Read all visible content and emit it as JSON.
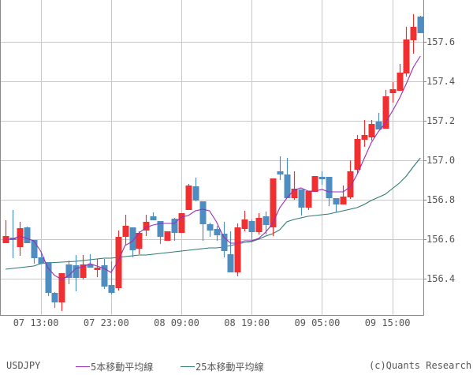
{
  "legend": {
    "symbol": "USDJPY",
    "ma5_label": "5本移動平均線",
    "ma25_label": "25本移動平均線",
    "credit": "(c)Quants Research"
  },
  "colors": {
    "up": "#f03030",
    "down": "#4f8cc0",
    "ma5": "#9a2db8",
    "ma25": "#2e7a72",
    "grid": "#c8c8c8",
    "frame": "#888888"
  },
  "chart_data": {
    "type": "candlestick",
    "title": "USDJPY",
    "symbol": "USDJPY",
    "interval": "1 hour",
    "xlabel": "",
    "ylabel": "",
    "ylim": [
      156.22,
      157.81
    ],
    "grid": true,
    "legend_position": "bottom",
    "y_ticks": [
      156.4,
      156.6,
      156.8,
      157.0,
      157.2,
      157.4,
      157.6
    ],
    "y_tick_labels": [
      "156.4",
      "156.6",
      "156.8",
      "157.0",
      "157.2",
      "157.4",
      "157.6"
    ],
    "x_ticks": [
      {
        "index": 5,
        "label": "07 13:00"
      },
      {
        "index": 15,
        "label": "07 23:00"
      },
      {
        "index": 25,
        "label": "08 09:00"
      },
      {
        "index": 35,
        "label": "08 19:00"
      },
      {
        "index": 45,
        "label": "09 05:00"
      },
      {
        "index": 55,
        "label": "09 15:00"
      }
    ],
    "series_names": [
      "USDJPY",
      "5本移動平均線",
      "25本移動平均線"
    ],
    "candles": [
      {
        "o": 156.58,
        "h": 156.696,
        "l": 156.6,
        "c": 156.616,
        "hi": 156.696,
        "lo": 156.6
      },
      {
        "o": 156.608,
        "h": 156.748,
        "l": 156.504,
        "c": 156.596
      },
      {
        "o": 156.56,
        "h": 156.688,
        "l": 156.516,
        "c": 156.656
      },
      {
        "o": 156.66,
        "h": 156.664,
        "l": 156.584,
        "c": 156.58
      },
      {
        "o": 156.596,
        "h": 156.596,
        "l": 156.476,
        "c": 156.504
      },
      {
        "o": 156.508,
        "h": 156.528,
        "l": 156.476,
        "c": 156.476
      },
      {
        "o": 156.484,
        "h": 156.484,
        "l": 156.312,
        "c": 156.328
      },
      {
        "o": 156.328,
        "h": 156.332,
        "l": 156.252,
        "c": 156.28
      },
      {
        "o": 156.28,
        "h": 156.424,
        "l": 156.236,
        "c": 156.428
      },
      {
        "o": 156.472,
        "h": 156.492,
        "l": 156.372,
        "c": 156.404
      },
      {
        "o": 156.468,
        "h": 156.52,
        "l": 156.336,
        "c": 156.404
      },
      {
        "o": 156.404,
        "h": 156.52,
        "l": 156.396,
        "c": 156.472
      },
      {
        "o": 156.472,
        "h": 156.524,
        "l": 156.456,
        "c": 156.456
      },
      {
        "o": 156.444,
        "h": 156.5,
        "l": 156.408,
        "c": 156.456
      },
      {
        "o": 156.468,
        "h": 156.5,
        "l": 156.348,
        "c": 156.36
      },
      {
        "o": 156.368,
        "h": 156.488,
        "l": 156.32,
        "c": 156.328
      },
      {
        "o": 156.352,
        "h": 156.644,
        "l": 156.34,
        "c": 156.612
      },
      {
        "o": 156.612,
        "h": 156.724,
        "l": 156.572,
        "c": 156.668
      },
      {
        "o": 156.66,
        "h": 156.66,
        "l": 156.508,
        "c": 156.544
      },
      {
        "o": 156.552,
        "h": 156.64,
        "l": 156.524,
        "c": 156.632
      },
      {
        "o": 156.644,
        "h": 156.724,
        "l": 156.616,
        "c": 156.688
      },
      {
        "o": 156.716,
        "h": 156.736,
        "l": 156.696,
        "c": 156.696
      },
      {
        "o": 156.692,
        "h": 156.692,
        "l": 156.576,
        "c": 156.612
      },
      {
        "o": 156.592,
        "h": 156.636,
        "l": 156.592,
        "c": 156.64
      },
      {
        "o": 156.704,
        "h": 156.708,
        "l": 156.592,
        "c": 156.632
      },
      {
        "o": 156.632,
        "h": 156.732,
        "l": 156.632,
        "c": 156.732
      },
      {
        "o": 156.748,
        "h": 156.88,
        "l": 156.8,
        "c": 156.872
      },
      {
        "o": 156.868,
        "h": 156.912,
        "l": 156.792,
        "c": 156.796
      },
      {
        "o": 156.792,
        "h": 156.792,
        "l": 156.592,
        "c": 156.676
      },
      {
        "o": 156.676,
        "h": 156.684,
        "l": 156.612,
        "c": 156.644
      },
      {
        "o": 156.652,
        "h": 156.668,
        "l": 156.592,
        "c": 156.62
      },
      {
        "o": 156.628,
        "h": 156.688,
        "l": 156.508,
        "c": 156.54
      },
      {
        "o": 156.524,
        "h": 156.64,
        "l": 156.432,
        "c": 156.432
      },
      {
        "o": 156.432,
        "h": 156.68,
        "l": 156.412,
        "c": 156.66
      },
      {
        "o": 156.652,
        "h": 156.744,
        "l": 156.64,
        "c": 156.7
      },
      {
        "o": 156.692,
        "h": 156.7,
        "l": 156.584,
        "c": 156.636
      },
      {
        "o": 156.636,
        "h": 156.732,
        "l": 156.624,
        "c": 156.708
      },
      {
        "o": 156.716,
        "h": 156.74,
        "l": 156.624,
        "c": 156.672
      },
      {
        "o": 156.66,
        "h": 156.908,
        "l": 156.616,
        "c": 156.908
      },
      {
        "o": 156.944,
        "h": 157.02,
        "l": 156.9,
        "c": 156.928
      },
      {
        "o": 156.928,
        "h": 157.012,
        "l": 156.808,
        "c": 156.808
      },
      {
        "o": 156.808,
        "h": 156.944,
        "l": 156.8,
        "c": 156.856
      },
      {
        "o": 156.852,
        "h": 156.852,
        "l": 156.72,
        "c": 156.76
      },
      {
        "o": 156.76,
        "h": 156.844,
        "l": 156.748,
        "c": 156.844
      },
      {
        "o": 156.84,
        "h": 156.908,
        "l": 156.84,
        "c": 156.92
      },
      {
        "o": 156.916,
        "h": 156.944,
        "l": 156.876,
        "c": 156.904
      },
      {
        "o": 156.916,
        "h": 156.916,
        "l": 156.768,
        "c": 156.808
      },
      {
        "o": 156.808,
        "h": 156.808,
        "l": 156.736,
        "c": 156.776
      },
      {
        "o": 156.776,
        "h": 156.872,
        "l": 156.776,
        "c": 156.816
      },
      {
        "o": 156.812,
        "h": 157.0,
        "l": 156.804,
        "c": 156.944
      },
      {
        "o": 156.952,
        "h": 157.128,
        "l": 156.932,
        "c": 157.108
      },
      {
        "o": 157.104,
        "h": 157.204,
        "l": 157.068,
        "c": 157.128
      },
      {
        "o": 157.116,
        "h": 157.204,
        "l": 157.1,
        "c": 157.184
      },
      {
        "o": 157.196,
        "h": 157.24,
        "l": 157.188,
        "c": 157.156
      },
      {
        "o": 157.16,
        "h": 157.356,
        "l": 157.16,
        "c": 157.324
      },
      {
        "o": 157.34,
        "h": 157.396,
        "l": 157.292,
        "c": 157.36
      },
      {
        "o": 157.352,
        "h": 157.488,
        "l": 157.352,
        "c": 157.444
      },
      {
        "o": 157.44,
        "h": 157.676,
        "l": 157.424,
        "c": 157.612
      },
      {
        "o": 157.608,
        "h": 157.74,
        "l": 157.54,
        "c": 157.676
      },
      {
        "o": 157.728,
        "h": 157.732,
        "l": 157.644,
        "c": 157.644
      }
    ],
    "ma5": [
      156.6,
      156.6,
      156.616,
      156.604,
      156.592,
      156.54,
      156.456,
      156.416,
      156.396,
      156.416,
      156.452,
      156.46,
      156.476,
      156.464,
      156.452,
      156.432,
      156.488,
      156.568,
      156.588,
      156.632,
      156.66,
      156.672,
      156.68,
      156.68,
      156.68,
      156.712,
      156.72,
      156.744,
      156.752,
      156.744,
      156.688,
      156.612,
      156.58,
      156.58,
      156.592,
      156.592,
      156.604,
      156.636,
      156.68,
      156.76,
      156.808,
      156.848,
      156.86,
      156.844,
      156.844,
      156.852,
      156.84,
      156.84,
      156.84,
      156.864,
      156.928,
      157.008,
      157.088,
      157.144,
      157.188,
      157.248,
      157.312,
      157.388,
      157.472,
      157.528
    ],
    "ma25": [
      156.448,
      156.452,
      156.456,
      156.46,
      156.464,
      156.476,
      156.48,
      156.482,
      156.484,
      156.486,
      156.488,
      156.492,
      156.496,
      156.5,
      156.504,
      156.504,
      156.508,
      156.512,
      156.516,
      156.52,
      156.52,
      156.524,
      156.528,
      156.532,
      156.536,
      156.54,
      156.544,
      156.548,
      156.552,
      156.556,
      156.556,
      156.56,
      156.568,
      156.576,
      156.584,
      156.588,
      156.6,
      156.616,
      156.628,
      156.648,
      156.688,
      156.7,
      156.708,
      156.716,
      156.72,
      156.724,
      156.728,
      156.736,
      156.744,
      156.752,
      156.76,
      156.776,
      156.796,
      156.812,
      156.828,
      156.856,
      156.884,
      156.92,
      156.968,
      157.012
    ]
  }
}
